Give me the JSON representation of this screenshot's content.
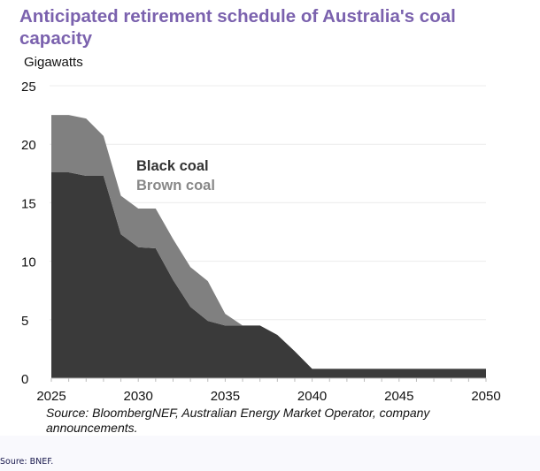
{
  "chart_data": {
    "type": "area",
    "stacked": true,
    "title": "Anticipated retirement schedule of Australia's coal capacity",
    "ylabel": "Gigawatts",
    "xlabel": "",
    "xlim": [
      2025,
      2050
    ],
    "ylim": [
      0,
      25
    ],
    "xticks": [
      2025,
      2030,
      2035,
      2040,
      2045,
      2050
    ],
    "yticks": [
      0,
      5,
      10,
      15,
      20,
      25
    ],
    "grid": true,
    "x": [
      2025,
      2026,
      2027,
      2028,
      2029,
      2030,
      2031,
      2032,
      2033,
      2034,
      2035,
      2036,
      2037,
      2038,
      2039,
      2040,
      2041,
      2042,
      2043,
      2044,
      2045,
      2046,
      2047,
      2048,
      2049,
      2050
    ],
    "series": [
      {
        "name": "Black coal",
        "color": "#3a3a3a",
        "values": [
          17.6,
          17.6,
          17.3,
          17.3,
          12.3,
          11.2,
          11.1,
          8.4,
          6.1,
          4.9,
          4.5,
          4.5,
          4.5,
          3.7,
          2.3,
          0.8,
          0.8,
          0.8,
          0.8,
          0.8,
          0.8,
          0.8,
          0.8,
          0.8,
          0.8,
          0.8
        ]
      },
      {
        "name": "Brown coal",
        "color": "#808080",
        "values": [
          4.9,
          4.9,
          4.9,
          3.4,
          3.3,
          3.3,
          3.4,
          3.5,
          3.4,
          3.4,
          1.0,
          0,
          0,
          0,
          0,
          0,
          0,
          0,
          0,
          0,
          0,
          0,
          0,
          0,
          0,
          0
        ]
      }
    ],
    "legend_placement": "inside-top-center",
    "source": "Source: BloombergNEF, Australian Energy Market Operator, company announcements."
  },
  "title_color": "#7b62ae",
  "footer_note": "Soure: BNEF."
}
